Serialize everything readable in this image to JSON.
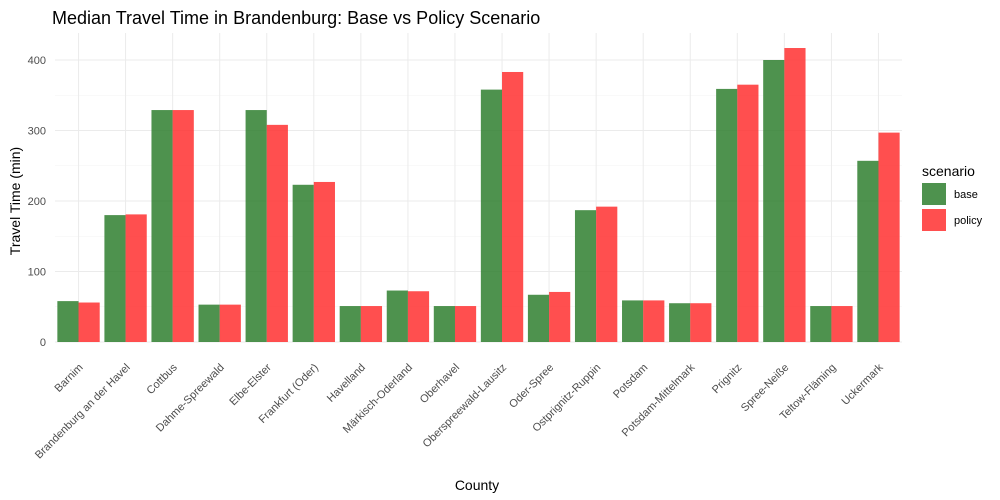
{
  "chart_data": {
    "type": "bar",
    "title": "Median Travel Time in Brandenburg: Base vs Policy Scenario",
    "xlabel": "County",
    "ylabel": "Travel Time (min)",
    "ylim": [
      0,
      430
    ],
    "yticks": [
      0,
      100,
      200,
      300,
      400
    ],
    "grid": true,
    "legend_title": "scenario",
    "legend_position": "right",
    "categories": [
      "Barnim",
      "Brandenburg an der Havel",
      "Cottbus",
      "Dahme-Spreewald",
      "Elbe-Elster",
      "Frankfurt (Oder)",
      "Havelland",
      "Märkisch-Oderland",
      "Oberhavel",
      "Oberspreewald-Lausitz",
      "Oder-Spree",
      "Ostprignitz-Ruppin",
      "Potsdam",
      "Potsdam-Mittelmark",
      "Prignitz",
      "Spree-Neiße",
      "Teltow-Fläming",
      "Uckermark"
    ],
    "series": [
      {
        "name": "base",
        "color": "#2f7f2f",
        "values": [
          58,
          180,
          329,
          53,
          329,
          223,
          51,
          73,
          51,
          358,
          67,
          187,
          59,
          55,
          359,
          400,
          51,
          257
        ]
      },
      {
        "name": "policy",
        "color": "#ff3030",
        "values": [
          56,
          181,
          329,
          53,
          308,
          227,
          51,
          72,
          51,
          383,
          71,
          192,
          59,
          55,
          365,
          417,
          51,
          297
        ]
      }
    ]
  }
}
